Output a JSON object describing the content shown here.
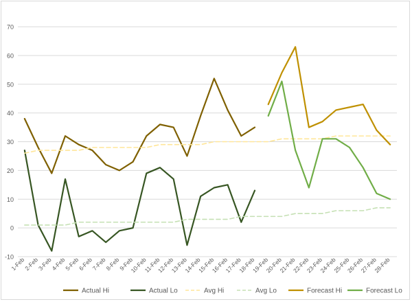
{
  "chart_data": {
    "type": "line",
    "title": "",
    "xlabel": "",
    "ylabel": "",
    "ylim": [
      -10,
      70
    ],
    "yticks": [
      -10,
      0,
      10,
      20,
      30,
      40,
      50,
      60,
      70
    ],
    "grid": true,
    "legend_position": "bottom",
    "categories": [
      "1-Feb",
      "2-Feb",
      "3-Feb",
      "4-Feb",
      "5-Feb",
      "6-Feb",
      "7-Feb",
      "8-Feb",
      "9-Feb",
      "10-Feb",
      "11-Feb",
      "12-Feb",
      "13-Feb",
      "14-Feb",
      "15-Feb",
      "16-Feb",
      "17-Feb",
      "18-Feb",
      "19-Feb",
      "20-Feb",
      "21-Feb",
      "22-Feb",
      "23-Feb",
      "24-Feb",
      "25-Feb",
      "26-Feb",
      "27-Feb",
      "28-Feb"
    ],
    "series": [
      {
        "name": "Actual Hi",
        "color": "#7f6000",
        "dash": false,
        "values": [
          38,
          28,
          19,
          32,
          29,
          27,
          22,
          20,
          23,
          32,
          36,
          35,
          25,
          39,
          52,
          41,
          32,
          35,
          null,
          null,
          null,
          null,
          null,
          null,
          null,
          null,
          null,
          null
        ]
      },
      {
        "name": "Actual Lo",
        "color": "#375623",
        "dash": false,
        "values": [
          27,
          1,
          -8,
          17,
          -3,
          -1,
          -5,
          -1,
          0,
          19,
          21,
          17,
          -6,
          11,
          14,
          15,
          2,
          13,
          null,
          null,
          null,
          null,
          null,
          null,
          null,
          null,
          null,
          null
        ]
      },
      {
        "name": "Avg Hi",
        "color": "#ffe699",
        "dash": true,
        "values": [
          26,
          27,
          27,
          27,
          27,
          28,
          28,
          28,
          28,
          28,
          29,
          29,
          29,
          29,
          30,
          30,
          30,
          30,
          30,
          31,
          31,
          31,
          31,
          32,
          32,
          32,
          32,
          32
        ]
      },
      {
        "name": "Avg Lo",
        "color": "#c5e0b4",
        "dash": true,
        "values": [
          1,
          1,
          1,
          1,
          2,
          2,
          2,
          2,
          2,
          2,
          2,
          2,
          3,
          3,
          3,
          3,
          4,
          4,
          4,
          4,
          5,
          5,
          5,
          6,
          6,
          6,
          7,
          7
        ]
      },
      {
        "name": "Forecast Hi",
        "color": "#bf9000",
        "dash": false,
        "values": [
          null,
          null,
          null,
          null,
          null,
          null,
          null,
          null,
          null,
          null,
          null,
          null,
          null,
          null,
          null,
          null,
          null,
          null,
          43,
          54,
          63,
          35,
          37,
          41,
          42,
          43,
          34,
          29
        ]
      },
      {
        "name": "Forecast Lo",
        "color": "#70ad47",
        "dash": false,
        "values": [
          null,
          null,
          null,
          null,
          null,
          null,
          null,
          null,
          null,
          null,
          null,
          null,
          null,
          null,
          null,
          null,
          null,
          null,
          39,
          51,
          27,
          14,
          31,
          31,
          28,
          21,
          12,
          10
        ]
      }
    ]
  }
}
